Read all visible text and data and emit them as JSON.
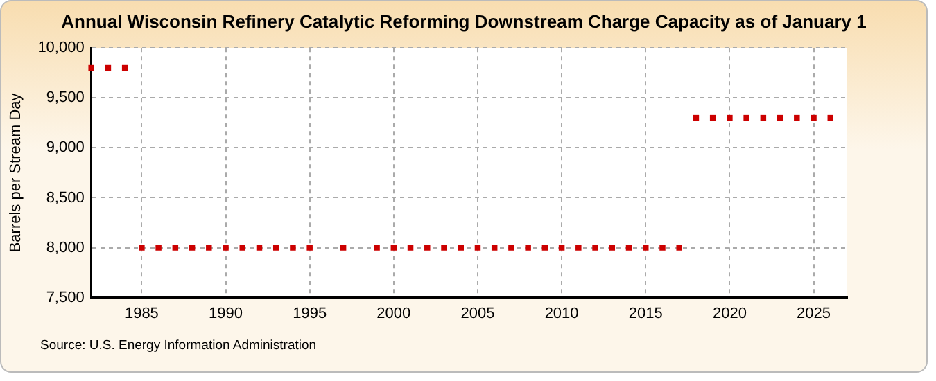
{
  "chart_data": {
    "type": "scatter",
    "title": "Annual Wisconsin Refinery Catalytic Reforming Downstream Charge Capacity as of January 1",
    "ylabel": "Barrels per Stream Day",
    "x": [
      1982,
      1983,
      1984,
      1985,
      1986,
      1987,
      1988,
      1989,
      1990,
      1991,
      1992,
      1993,
      1994,
      1995,
      1996,
      1997,
      1998,
      1999,
      2000,
      2001,
      2002,
      2003,
      2004,
      2005,
      2006,
      2007,
      2008,
      2009,
      2010,
      2011,
      2012,
      2013,
      2014,
      2015,
      2016,
      2017,
      2018,
      2019,
      2020,
      2021,
      2022,
      2023,
      2024,
      2025,
      2026
    ],
    "series": [
      {
        "color": "#cc0000",
        "values": [
          9800,
          9800,
          9800,
          8000,
          8000,
          8000,
          8000,
          8000,
          8000,
          8000,
          8000,
          8000,
          8000,
          8000,
          null,
          8000,
          null,
          8000,
          8000,
          8000,
          8000,
          8000,
          8000,
          8000,
          8000,
          8000,
          8000,
          8000,
          8000,
          8000,
          8000,
          8000,
          8000,
          8000,
          8000,
          8000,
          9300,
          9300,
          9300,
          9300,
          9300,
          9300,
          9300,
          9300,
          9300
        ]
      }
    ],
    "xlim": [
      1982,
      2027
    ],
    "xticks": [
      1985,
      1990,
      1995,
      2000,
      2005,
      2010,
      2015,
      2020,
      2025
    ],
    "ylim": [
      7500,
      10000
    ],
    "yticks": [
      {
        "value": 7500,
        "label": "7,500"
      },
      {
        "value": 8000,
        "label": "8,000"
      },
      {
        "value": 8500,
        "label": "8,500"
      },
      {
        "value": 9000,
        "label": "9,000"
      },
      {
        "value": 9500,
        "label": "9,500"
      },
      {
        "value": 10000,
        "label": "10,000"
      }
    ],
    "grid": true,
    "marker": "square",
    "legend": false,
    "annotations": [
      "Source: U.S. Energy Information Administration"
    ]
  }
}
